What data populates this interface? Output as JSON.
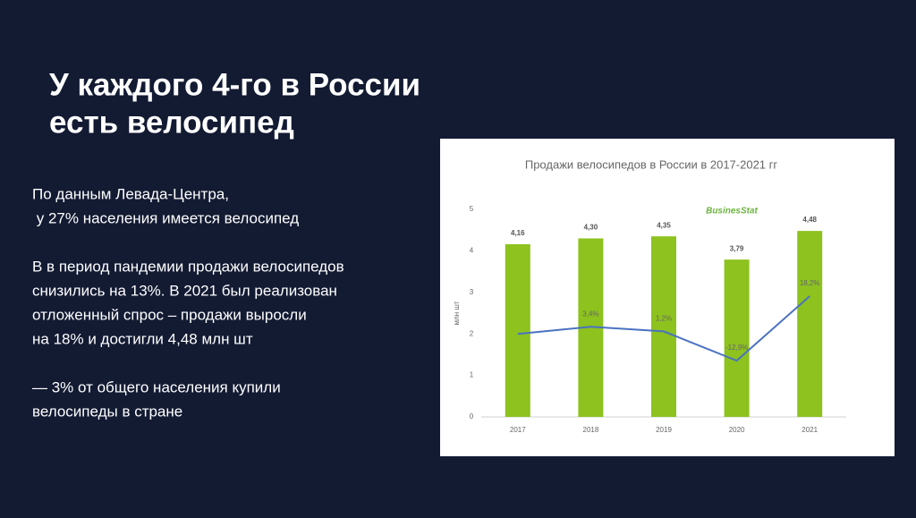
{
  "title_lines": [
    "У каждого 4-го в России",
    "есть велосипед"
  ],
  "paragraphs": [
    [
      "По данным Левада-Центра,",
      " у 27% населения имеется велосипед"
    ],
    [
      "В в период пандемии продажи велосипедов",
      "снизились на 13%. В 2021 был реализован",
      "отложенный спрос – продажи выросли",
      "на 18% и достигли 4,48 млн шт"
    ],
    [
      "— 3% от общего населения купили",
      "велосипеды в стране"
    ]
  ],
  "chart_data": {
    "type": "bar",
    "title": "Продажи велосипедов в России в 2017-2021 гг",
    "logo": "BusinesStat",
    "ylabel": "млн шт",
    "categories": [
      "2017",
      "2018",
      "2019",
      "2020",
      "2021"
    ],
    "series": [
      {
        "type": "bar",
        "color": "#8dc21f",
        "values": [
          4.16,
          4.3,
          4.35,
          3.79,
          4.48
        ],
        "value_labels": [
          "4,16",
          "4,30",
          "4,35",
          "3,79",
          "4,48"
        ]
      },
      {
        "type": "line",
        "axis": "y2",
        "color": "#4a72c0",
        "values": [
          0,
          3.4,
          1.2,
          -12.9,
          18.2
        ],
        "value_labels": [
          null,
          "3,4%",
          "1,2%",
          "-12,9%",
          "18,2%"
        ]
      }
    ],
    "ylim": [
      0,
      5
    ],
    "yticks": [
      0,
      1,
      2,
      3,
      4,
      5
    ],
    "y2lim": [
      -40,
      60
    ]
  }
}
